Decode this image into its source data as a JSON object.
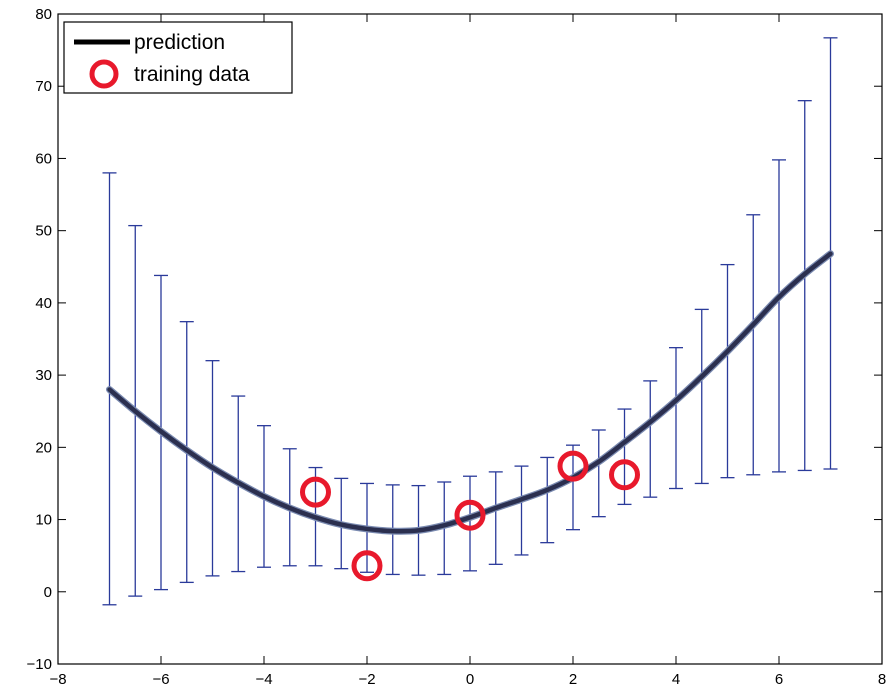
{
  "chart_data": {
    "type": "line",
    "title": "",
    "xlabel": "",
    "ylabel": "",
    "xlim": [
      -8,
      8
    ],
    "ylim": [
      -10,
      80
    ],
    "xticks": [
      -8,
      -6,
      -4,
      -2,
      0,
      2,
      4,
      6,
      8
    ],
    "yticks": [
      -10,
      0,
      10,
      20,
      30,
      40,
      50,
      60,
      70,
      80
    ],
    "xtick_labels": [
      "−8",
      "−6",
      "−4",
      "−2",
      "0",
      "2",
      "4",
      "6",
      "8"
    ],
    "ytick_labels": [
      "−10",
      "0",
      "10",
      "20",
      "30",
      "40",
      "50",
      "60",
      "70",
      "80"
    ],
    "grid": false,
    "legend_position": "top-left",
    "legend": [
      {
        "label": "prediction",
        "style": "line"
      },
      {
        "label": "training data",
        "style": "circle"
      }
    ],
    "prediction": {
      "name": "prediction",
      "color": "#2b2f4f",
      "x": [
        -7,
        -6.5,
        -6,
        -5.5,
        -5,
        -4.5,
        -4,
        -3.5,
        -3,
        -2.5,
        -2,
        -1.5,
        -1,
        -0.5,
        0,
        0.5,
        1,
        1.5,
        2,
        2.5,
        3,
        3.5,
        4,
        4.5,
        5,
        5.5,
        6,
        6.5,
        7
      ],
      "y": [
        28.0,
        25.0,
        22.2,
        19.6,
        17.2,
        15.1,
        13.2,
        11.6,
        10.3,
        9.3,
        8.7,
        8.4,
        8.5,
        9.2,
        10.3,
        11.6,
        12.8,
        14.1,
        15.8,
        18.0,
        20.7,
        23.5,
        26.5,
        29.8,
        33.3,
        37.0,
        40.8,
        44.0,
        46.8
      ]
    },
    "error_bars": {
      "color": "#2a3a9a",
      "x": [
        -7,
        -6.5,
        -6,
        -5.5,
        -5,
        -4.5,
        -4,
        -3.5,
        -3,
        -2.5,
        -2,
        -1.5,
        -1,
        -0.5,
        0,
        0.5,
        1,
        1.5,
        2,
        2.5,
        3,
        3.5,
        4,
        4.5,
        5,
        5.5,
        6,
        6.5,
        7
      ],
      "upper": [
        58.0,
        50.7,
        43.8,
        37.4,
        32.0,
        27.1,
        23.0,
        19.8,
        17.2,
        15.7,
        15.0,
        14.8,
        14.7,
        15.2,
        16.0,
        16.6,
        17.4,
        18.6,
        20.3,
        22.4,
        25.3,
        29.2,
        33.8,
        39.1,
        45.3,
        52.2,
        59.8,
        68.0,
        76.7
      ],
      "lower": [
        -1.8,
        -0.6,
        0.3,
        1.3,
        2.2,
        2.8,
        3.4,
        3.6,
        3.6,
        3.2,
        2.7,
        2.4,
        2.3,
        2.4,
        2.9,
        3.8,
        5.1,
        6.8,
        8.6,
        10.4,
        12.1,
        13.1,
        14.3,
        15.0,
        15.8,
        16.2,
        16.6,
        16.8,
        17.0
      ]
    },
    "training_data": {
      "name": "training data",
      "color": "#e8192c",
      "x": [
        -3,
        -2,
        0,
        2,
        3
      ],
      "y": [
        13.8,
        3.6,
        10.6,
        17.4,
        16.2
      ]
    }
  }
}
